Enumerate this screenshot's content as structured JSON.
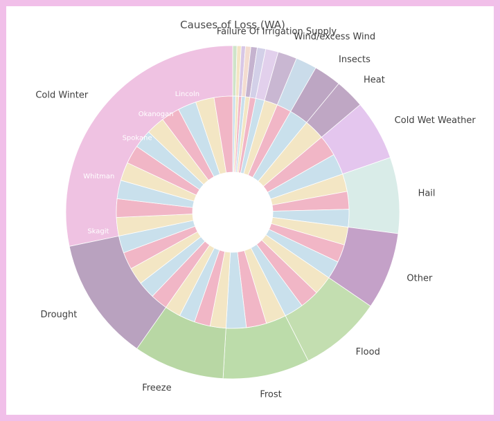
{
  "chart_data": {
    "type": "sunburst",
    "title": "Causes of Loss (WA)",
    "outer_ring": [
      {
        "name": "",
        "value": 0.4,
        "color": "#cfe4c9"
      },
      {
        "name": "",
        "value": 0.4,
        "color": "#f3e5c4"
      },
      {
        "name": "",
        "value": 0.4,
        "color": "#d8c7e6"
      },
      {
        "name": "",
        "value": 0.5,
        "color": "#f3dcd0"
      },
      {
        "name": "",
        "value": 0.6,
        "color": "#c5b3cf"
      },
      {
        "name": "",
        "value": 0.8,
        "color": "#d3d0e8"
      },
      {
        "name": "Failure Of Irrigation Supply",
        "value": 1.2,
        "color": "#e2d0ec"
      },
      {
        "name": "Wind/excess Wind",
        "value": 1.8,
        "color": "#c9b7d2"
      },
      {
        "name": "",
        "value": 2.0,
        "color": "#cadcea"
      },
      {
        "name": "Insects",
        "value": 2.6,
        "color": "#bda6c3"
      },
      {
        "name": "Heat",
        "value": 2.8,
        "color": "#bfa7c4"
      },
      {
        "name": "Cold Wet Weather",
        "value": 5.7,
        "color": "#e4c6ee"
      },
      {
        "name": "Hail",
        "value": 7.2,
        "color": "#d9ece8"
      },
      {
        "name": "Other",
        "value": 7.3,
        "color": "#c4a1c8"
      },
      {
        "name": "Flood",
        "value": 7.8,
        "color": "#c3deb0"
      },
      {
        "name": "Frost",
        "value": 8.2,
        "color": "#bcdcaa"
      },
      {
        "name": "Freeze",
        "value": 8.6,
        "color": "#b8d7a4"
      },
      {
        "name": "Drought",
        "value": 11.7,
        "color": "#b9a2bf"
      },
      {
        "name": "Cold Winter",
        "value": 27.6,
        "color": "#efc2e2"
      }
    ],
    "inner_labels": [
      {
        "text": "Lincoln",
        "angle": 339,
        "radius": 183
      },
      {
        "text": "Okanogan",
        "angle": 322,
        "radius": 180
      },
      {
        "text": "Spokane",
        "angle": 308,
        "radius": 175
      },
      {
        "text": "Whitman",
        "angle": 285,
        "radius": 200
      },
      {
        "text": "Skagit",
        "angle": 262,
        "radius": 196
      }
    ]
  }
}
